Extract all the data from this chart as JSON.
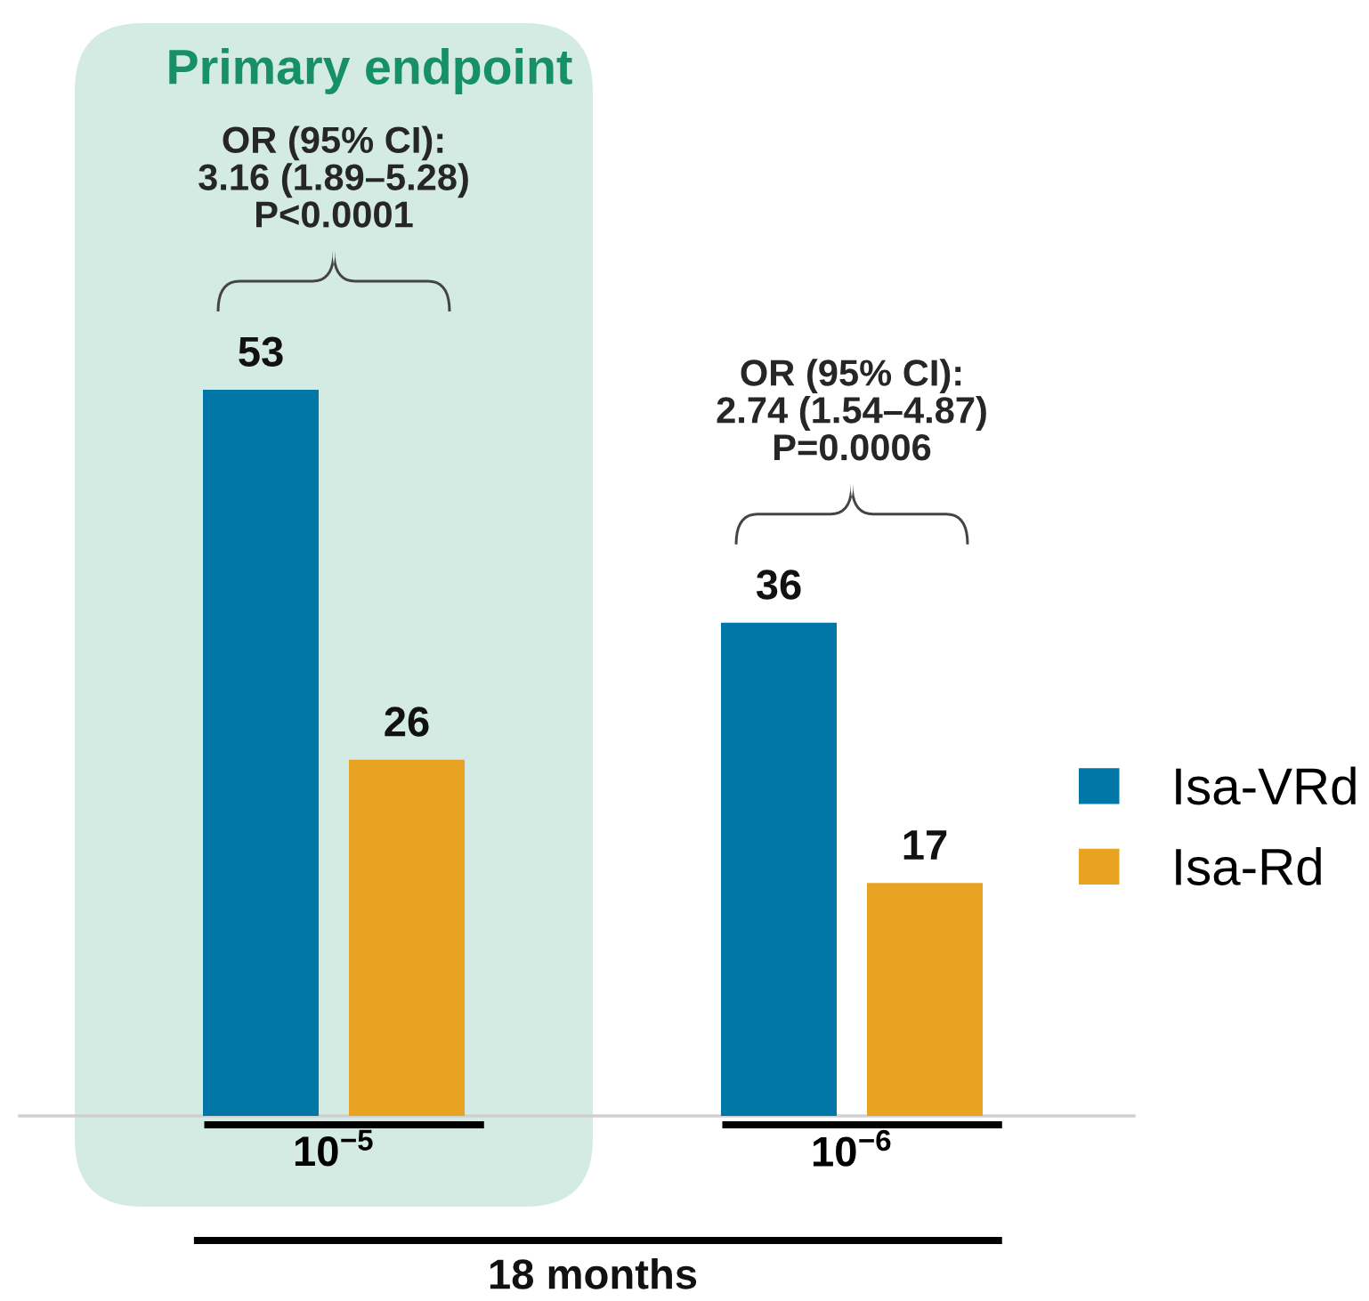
{
  "chart_data": {
    "type": "bar",
    "xlabel": "18 months",
    "categories": [
      "10$^{−5}$",
      "10$^{−6}$"
    ],
    "series": [
      {
        "name": "Isa-VRd",
        "color": "#0077a6",
        "values": [
          53,
          36
        ]
      },
      {
        "name": "Isa-Rd",
        "color": "#e8a323",
        "values": [
          26,
          17
        ]
      }
    ],
    "data_labels": true,
    "legend": "right",
    "bands": [
      {
        "axis": "x",
        "from": "10$^{−5}$",
        "to": "10$^{−5}$",
        "label": "Primary endpoint",
        "color": "#d4ebe4"
      }
    ],
    "annotations": [
      "OR (95% CI):\n3.16 (1.89–5.28)\nP<0.0001",
      "OR (95% CI):\n2.74 (1.54–4.87)\nP=0.0006"
    ]
  }
}
